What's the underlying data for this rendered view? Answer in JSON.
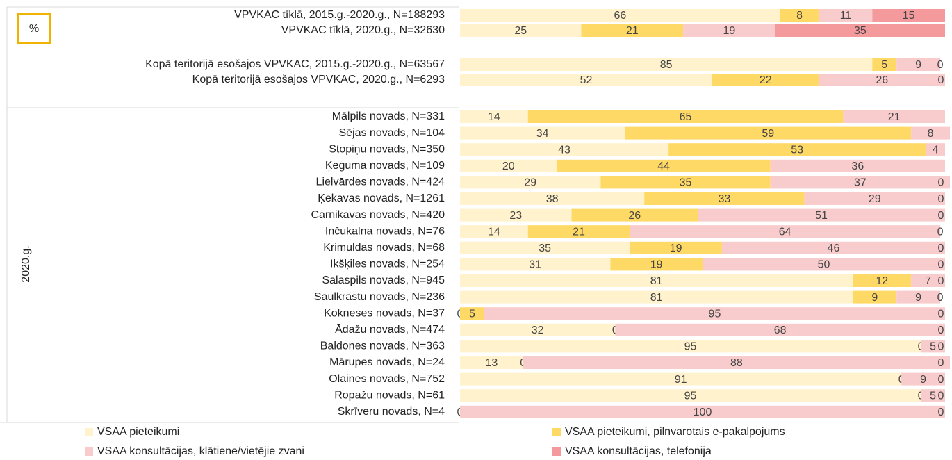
{
  "chart_data": {
    "type": "bar",
    "orientation": "horizontal",
    "stacked": true,
    "unit_label": "%",
    "group_label": "2020.g.",
    "xlim": [
      0,
      100
    ],
    "categories": [
      "VPVKAC tīklā, 2015.g.-2020.g., N=188293",
      "VPVKAC tīklā, 2020.g., N=32630",
      "Kopā teritorijā esošajos VPVKAC, 2015.g.-2020.g., N=63567",
      "Kopā teritorijā esošajos VPVKAC, 2020.g., N=6293",
      "Mālpils novads, N=331",
      "Sējas novads, N=104",
      "Stopiņu novads, N=350",
      "Ķeguma novads, N=109",
      "Lielvārdes novads, N=424",
      "Ķekavas novads, N=1261",
      "Carnikavas novads, N=420",
      "Inčukalna novads, N=76",
      "Krimuldas novads, N=68",
      "Ikšķiles novads, N=254",
      "Salaspils novads, N=945",
      "Saulkrastu novads, N=236",
      "Kokneses novads, N=37",
      "Ādažu novads, N=474",
      "Baldones novads, N=363",
      "Mārupes novads, N=24",
      "Olaines novads, N=752",
      "Ropažu novads, N=61",
      "Skrīveru novads, N=4"
    ],
    "series": [
      {
        "name": "VSAA pieteikumi",
        "color": "#fff2cc",
        "values": [
          66,
          25,
          85,
          52,
          14,
          34,
          43,
          20,
          29,
          38,
          23,
          14,
          35,
          31,
          81,
          81,
          0,
          32,
          95,
          13,
          91,
          95,
          0
        ]
      },
      {
        "name": "VSAA pieteikumi, pilnvarotais e-pakalpojums",
        "color": "#ffd966",
        "values": [
          8,
          21,
          5,
          22,
          65,
          59,
          53,
          44,
          35,
          33,
          26,
          21,
          19,
          19,
          12,
          9,
          5,
          0,
          0,
          0,
          0,
          0,
          null
        ]
      },
      {
        "name": "VSAA konsultācijas, klātiene/vietējie zvani",
        "color": "#f8cbcc",
        "values": [
          11,
          19,
          9,
          26,
          21,
          8,
          4,
          36,
          37,
          29,
          51,
          64,
          46,
          50,
          7,
          9,
          95,
          68,
          5,
          88,
          9,
          5,
          100
        ]
      },
      {
        "name": "VSAA konsultācijas, telefonija",
        "color": "#f4999c",
        "values": [
          15,
          35,
          0,
          0,
          null,
          null,
          null,
          null,
          0,
          0,
          0,
          0,
          0,
          0,
          0,
          0,
          0,
          0,
          0,
          0,
          0,
          0,
          0
        ]
      }
    ]
  }
}
